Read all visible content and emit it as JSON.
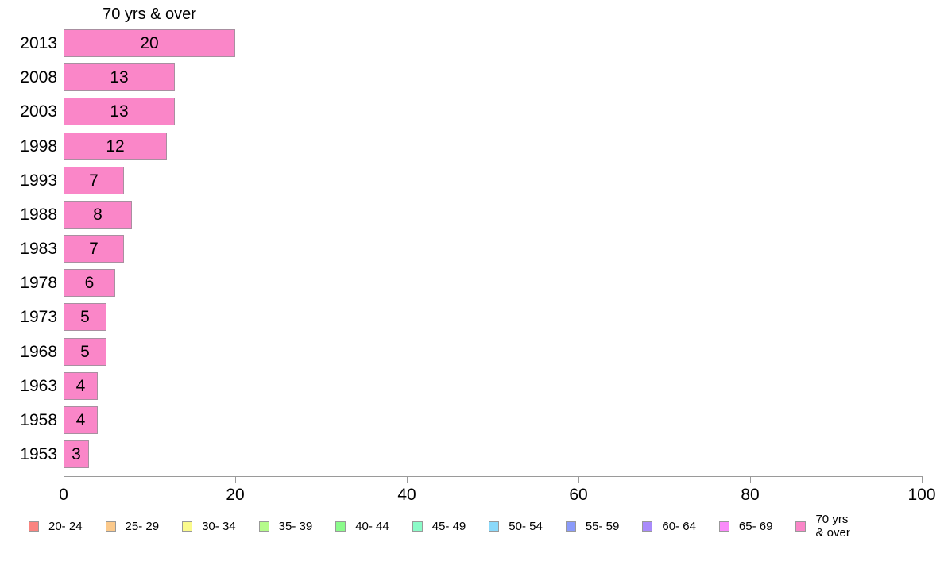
{
  "chart_data": {
    "type": "bar",
    "orientation": "horizontal",
    "title": "70 yrs & over",
    "categories": [
      "2013",
      "2008",
      "2003",
      "1998",
      "1993",
      "1988",
      "1983",
      "1978",
      "1973",
      "1968",
      "1963",
      "1958",
      "1953"
    ],
    "values": [
      20,
      13,
      13,
      12,
      7,
      8,
      7,
      6,
      5,
      5,
      4,
      4,
      3
    ],
    "xlabel": "",
    "ylabel": "",
    "xlim": [
      0,
      100
    ],
    "x_ticks": [
      0,
      20,
      40,
      60,
      80,
      100
    ],
    "grid": false,
    "legend_position": "bottom",
    "colors": {
      "bar_fill": "#FA86C8",
      "bar_border": "#A88FA0",
      "axis": "#9A9A9A",
      "text": "#000000"
    },
    "legend": [
      {
        "label": "20- 24",
        "color": "#FA8480"
      },
      {
        "label": "25- 29",
        "color": "#FBC98B"
      },
      {
        "label": "30- 34",
        "color": "#FAFA8C"
      },
      {
        "label": "35- 39",
        "color": "#B5FB8B"
      },
      {
        "label": "40- 44",
        "color": "#8BFB8B"
      },
      {
        "label": "45- 49",
        "color": "#8BFBC8"
      },
      {
        "label": "50- 54",
        "color": "#8BD9FA"
      },
      {
        "label": "55- 59",
        "color": "#8B9BFA"
      },
      {
        "label": "60- 64",
        "color": "#A98BFA"
      },
      {
        "label": "65- 69",
        "color": "#FA8BFA"
      },
      {
        "label": "70 yrs\n& over",
        "color": "#FA86C8"
      }
    ]
  }
}
